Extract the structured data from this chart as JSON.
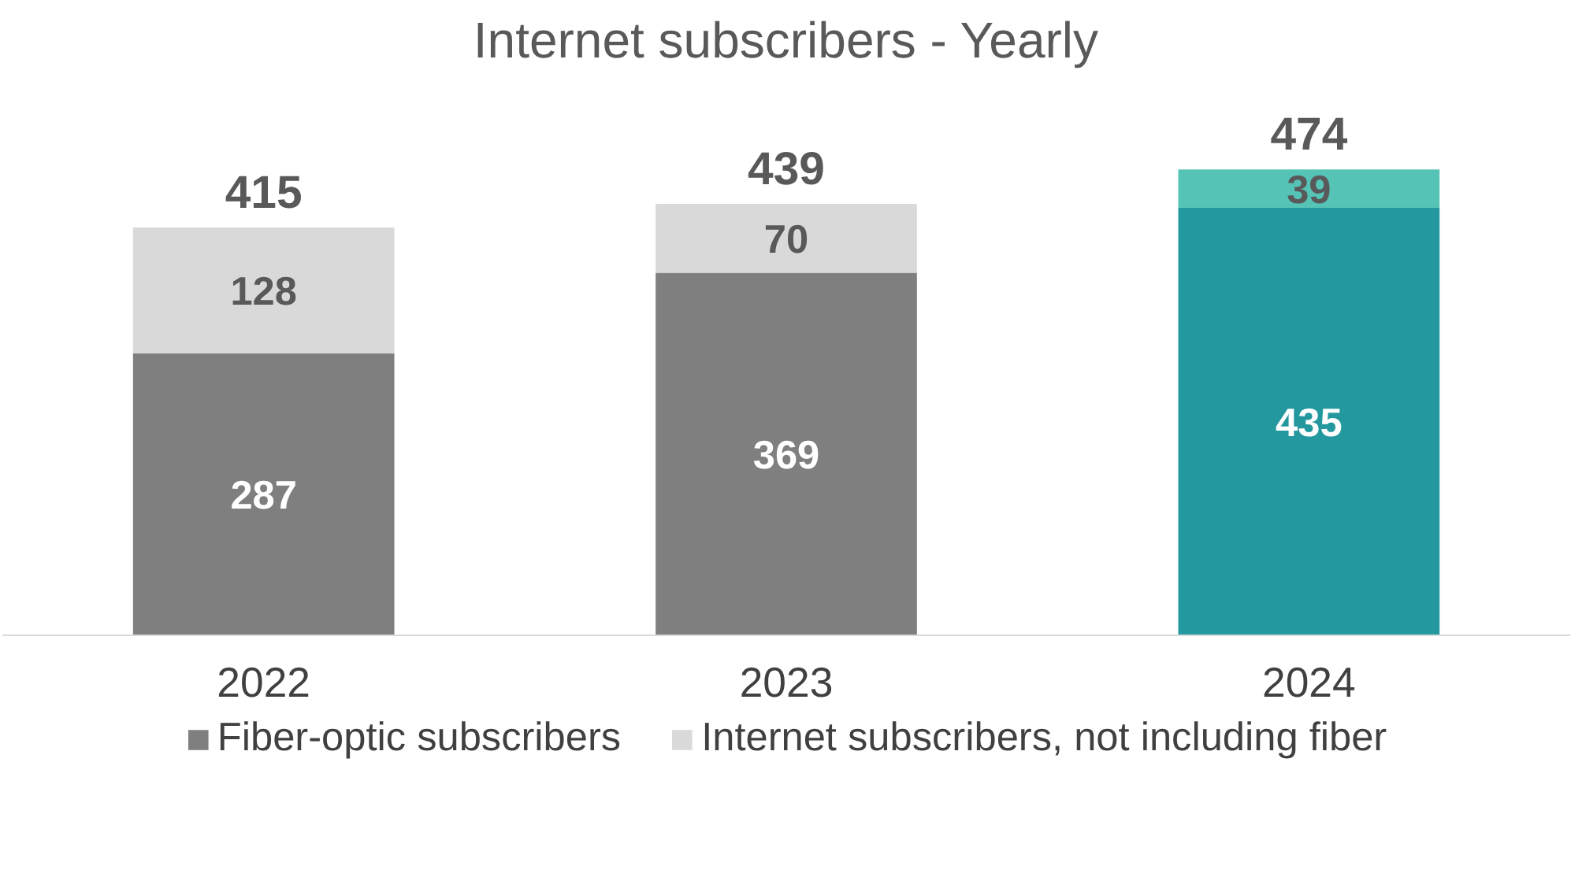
{
  "chart_data": {
    "type": "bar",
    "title": "Internet subscribers - Yearly",
    "categories": [
      "2022",
      "2023",
      "2024"
    ],
    "stacked": true,
    "series": [
      {
        "name": "Fiber-optic subscribers",
        "color": "#7f7f7f",
        "colors": [
          "#7f7f7f",
          "#7f7f7f",
          "#23989f"
        ],
        "values": [
          287,
          369,
          435
        ]
      },
      {
        "name": "Internet subscribers, not including fiber",
        "color": "#d9d9d9",
        "colors": [
          "#d9d9d9",
          "#d9d9d9",
          "#56c3b7"
        ],
        "values": [
          128,
          70,
          39
        ]
      }
    ],
    "totals": [
      "415",
      "439",
      "474"
    ],
    "data_labels": true,
    "grid": false,
    "legend": "bottom"
  }
}
